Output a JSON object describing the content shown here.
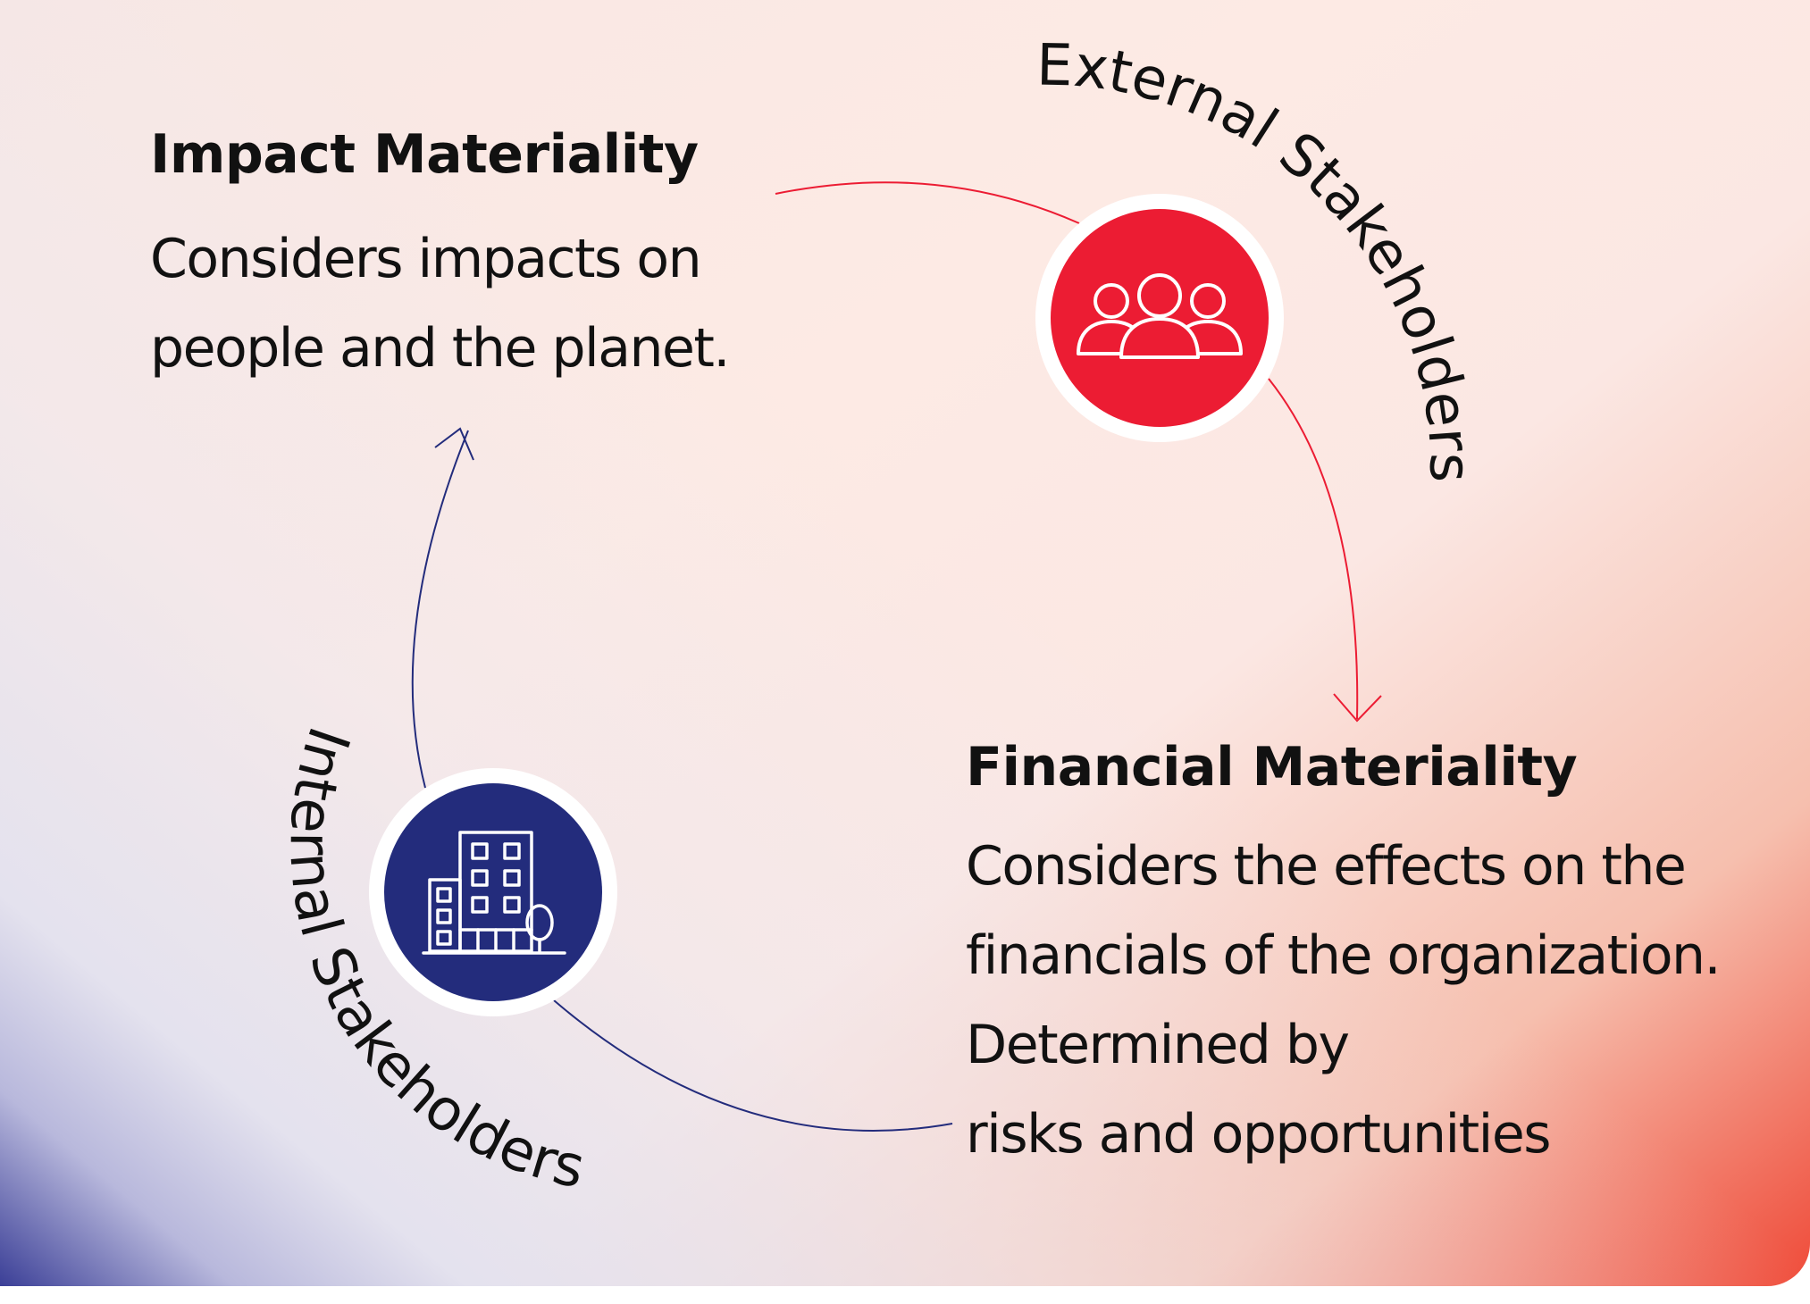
{
  "colors": {
    "external": "#ec1c33",
    "internal": "#232c7c",
    "text": "#111111"
  },
  "diagram": {
    "external_stakeholders": {
      "label": "External Stakeholders",
      "icon": "people-group-icon"
    },
    "internal_stakeholders": {
      "label": "Internal Stakeholders",
      "icon": "office-building-icon"
    },
    "impact_materiality": {
      "title": "Impact Materiality",
      "description": [
        "Considers impacts on",
        "people and the planet."
      ]
    },
    "financial_materiality": {
      "title": "Financial Materiality",
      "description": [
        "Considers the effects on the",
        "financials of the organization.",
        "Determined by",
        "risks and opportunities"
      ]
    }
  }
}
